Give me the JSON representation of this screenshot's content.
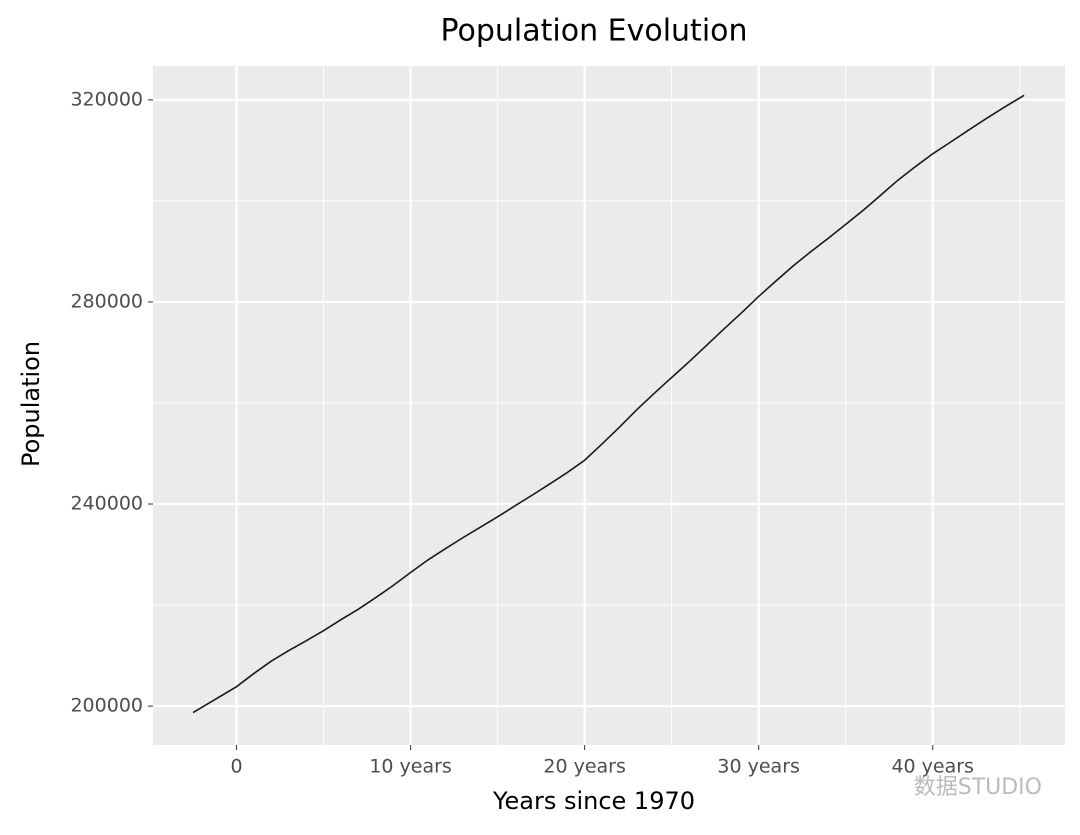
{
  "chart_data": {
    "type": "line",
    "title": "Population Evolution",
    "x_label": "Years since 1970",
    "y_label": "Population",
    "watermark": "数据STUDIO",
    "x": [
      -2.5,
      0,
      1,
      2,
      3,
      4,
      5,
      6,
      7,
      8,
      9,
      10,
      11,
      12,
      13,
      14,
      15,
      16,
      17,
      18,
      19,
      20,
      21,
      22,
      23,
      24,
      25,
      26,
      27,
      28,
      29,
      30,
      31,
      32,
      33,
      34,
      35,
      36,
      37,
      38,
      39,
      40,
      41,
      42,
      43,
      44,
      45.25
    ],
    "series": [
      {
        "name": "Population",
        "color": "#1a1a1a",
        "values": [
          198712,
          203849,
          206466,
          208917,
          210985,
          212932,
          214931,
          217095,
          219179,
          221477,
          223865,
          226451,
          228937,
          231157,
          233322,
          235385,
          237468,
          239638,
          241784,
          243981,
          246224,
          248659,
          251889,
          255214,
          258679,
          261919,
          265044,
          268151,
          271394,
          274626,
          277790,
          281083,
          284169,
          287190,
          289956,
          292600,
          295361,
          298133,
          301096,
          304094,
          306772,
          309327,
          311583,
          313874,
          316129,
          318310,
          320887
        ]
      }
    ],
    "xlim": [
      -4.8,
      47.6
    ],
    "ylim": [
      192300,
      326700
    ],
    "xticks": [
      0,
      {
        "value": 10,
        "label": "10 years"
      },
      {
        "value": 20,
        "label": "20 years"
      },
      {
        "value": 30,
        "label": "30 years"
      },
      {
        "value": 40,
        "label": "40 years"
      }
    ],
    "yticks": [
      200000,
      240000,
      280000,
      320000
    ],
    "x_minor_ticks": [
      -5,
      5,
      15,
      25,
      35,
      45
    ],
    "y_minor_ticks": [
      220000,
      260000,
      300000
    ],
    "grid": true,
    "panel_color": "#ebebeb"
  }
}
